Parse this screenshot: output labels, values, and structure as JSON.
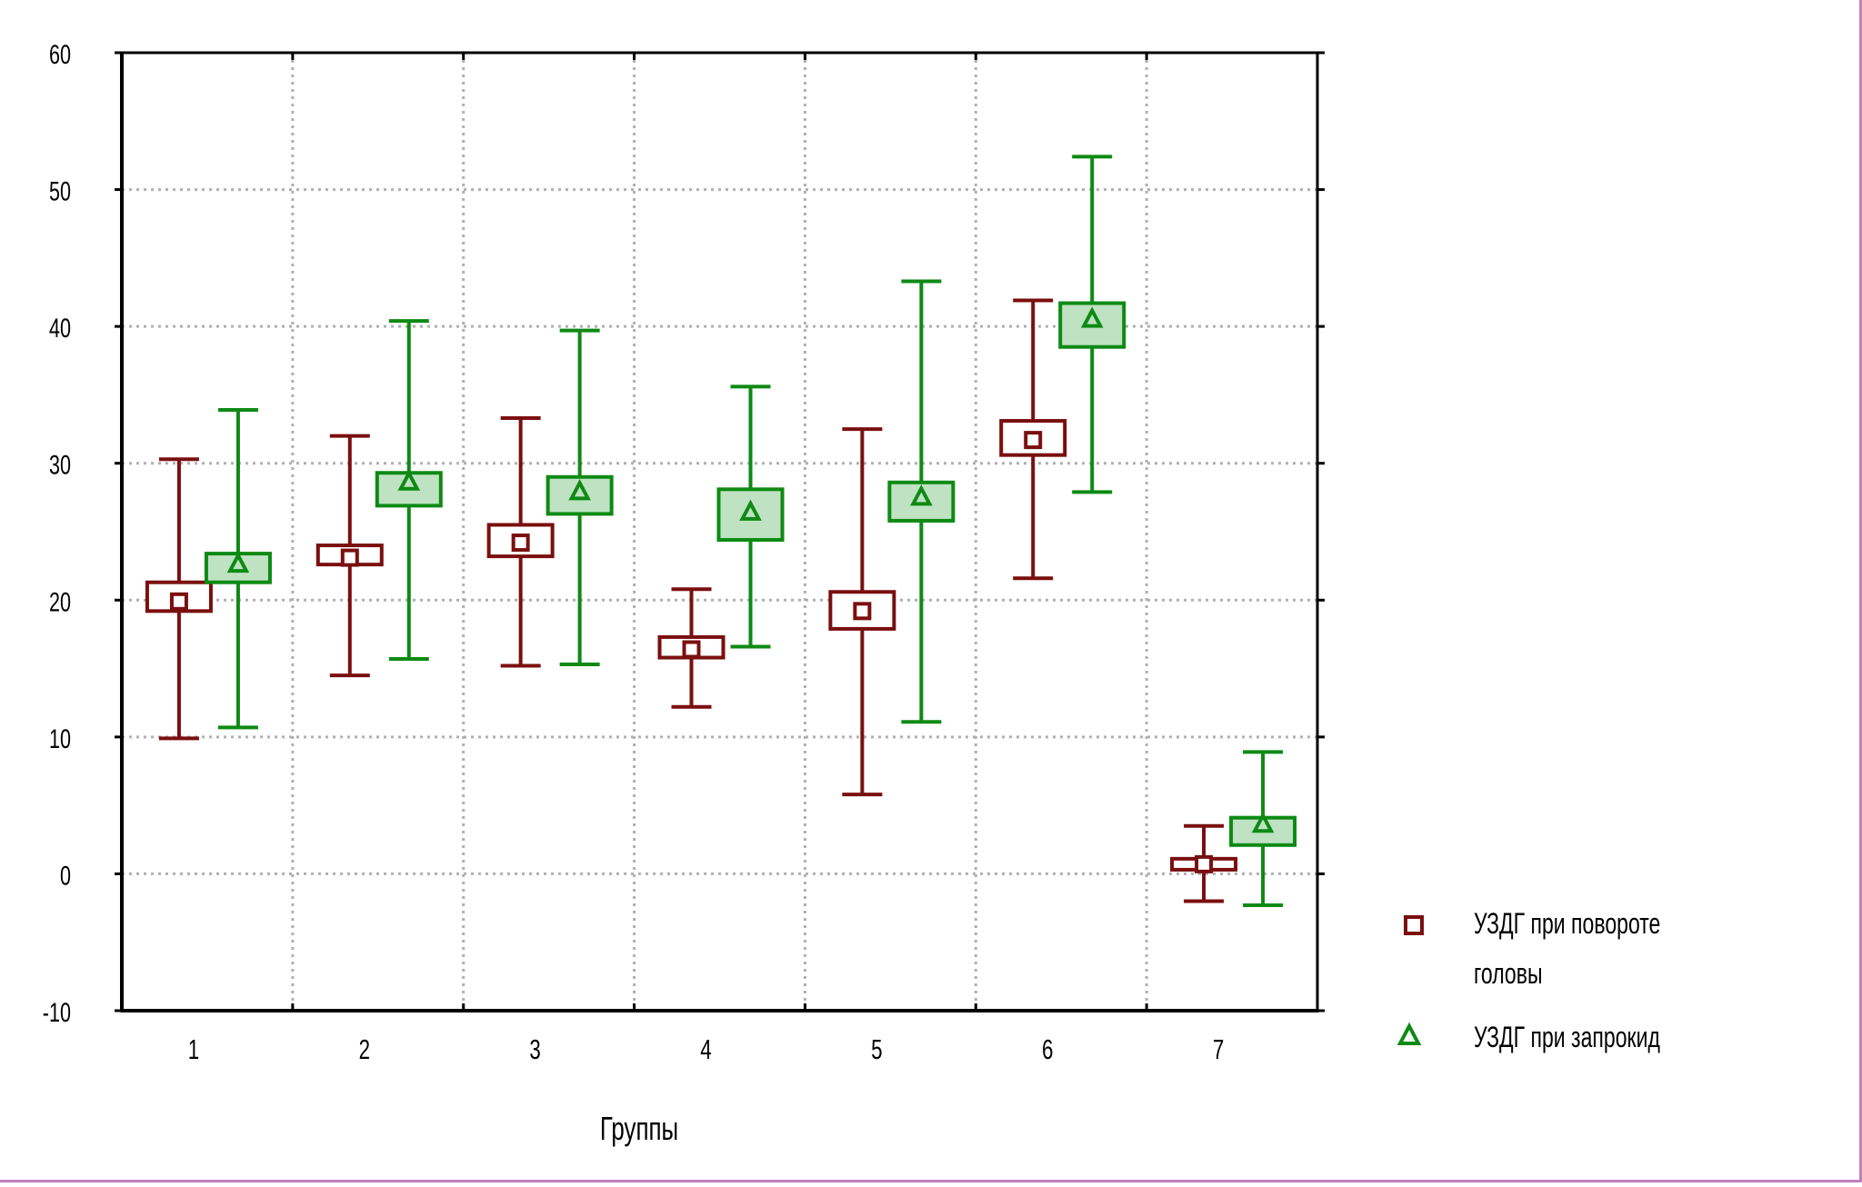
{
  "colors": {
    "series1": "#7a0f0f",
    "series2": "#0e8a14",
    "series2_fill": "#bfe2c2",
    "grid": "#b0b0b0",
    "axis": "#000000"
  },
  "chart_data": {
    "type": "box",
    "x": [
      "1",
      "2",
      "3",
      "4",
      "5",
      "6",
      "7"
    ],
    "xlabel": "Группы",
    "ylabel": "",
    "title": "",
    "ylim": [
      -10,
      60
    ],
    "yticks": [
      -10,
      0,
      10,
      20,
      30,
      40,
      50,
      60
    ],
    "grid": true,
    "legend_position": "right",
    "series": [
      {
        "name": "УЗДГ при повороте головы",
        "marker": "square",
        "color": "#7a0f0f",
        "mean": [
          19.9,
          23.1,
          24.2,
          16.4,
          19.2,
          31.7,
          0.7
        ],
        "box_low": [
          19.2,
          22.6,
          23.2,
          15.8,
          17.9,
          30.6,
          0.3
        ],
        "box_high": [
          21.3,
          24.0,
          25.5,
          17.3,
          20.6,
          33.1,
          1.1
        ],
        "whisker_low": [
          9.9,
          14.5,
          15.2,
          12.2,
          5.8,
          21.6,
          -2.0
        ],
        "whisker_high": [
          30.3,
          32.0,
          33.3,
          20.8,
          32.5,
          41.9,
          3.5
        ]
      },
      {
        "name": "УЗДГ при запрокид",
        "marker": "triangle",
        "color": "#0e8a14",
        "mean": [
          22.6,
          28.6,
          27.9,
          26.4,
          27.5,
          40.5,
          3.6
        ],
        "box_low": [
          21.3,
          26.9,
          26.3,
          24.4,
          25.8,
          38.5,
          2.1
        ],
        "box_high": [
          23.4,
          29.3,
          29.0,
          28.1,
          28.6,
          41.7,
          4.1
        ],
        "whisker_low": [
          10.7,
          15.7,
          15.3,
          16.6,
          11.1,
          27.9,
          -2.3
        ],
        "whisker_high": [
          33.9,
          40.4,
          39.7,
          35.6,
          43.3,
          52.4,
          8.9
        ]
      }
    ]
  },
  "legend": {
    "items": [
      {
        "line1": "УЗДГ при повороте",
        "line2": "головы",
        "marker": "square"
      },
      {
        "line1": "УЗДГ при запрокид",
        "line2": "",
        "marker": "triangle"
      }
    ]
  }
}
